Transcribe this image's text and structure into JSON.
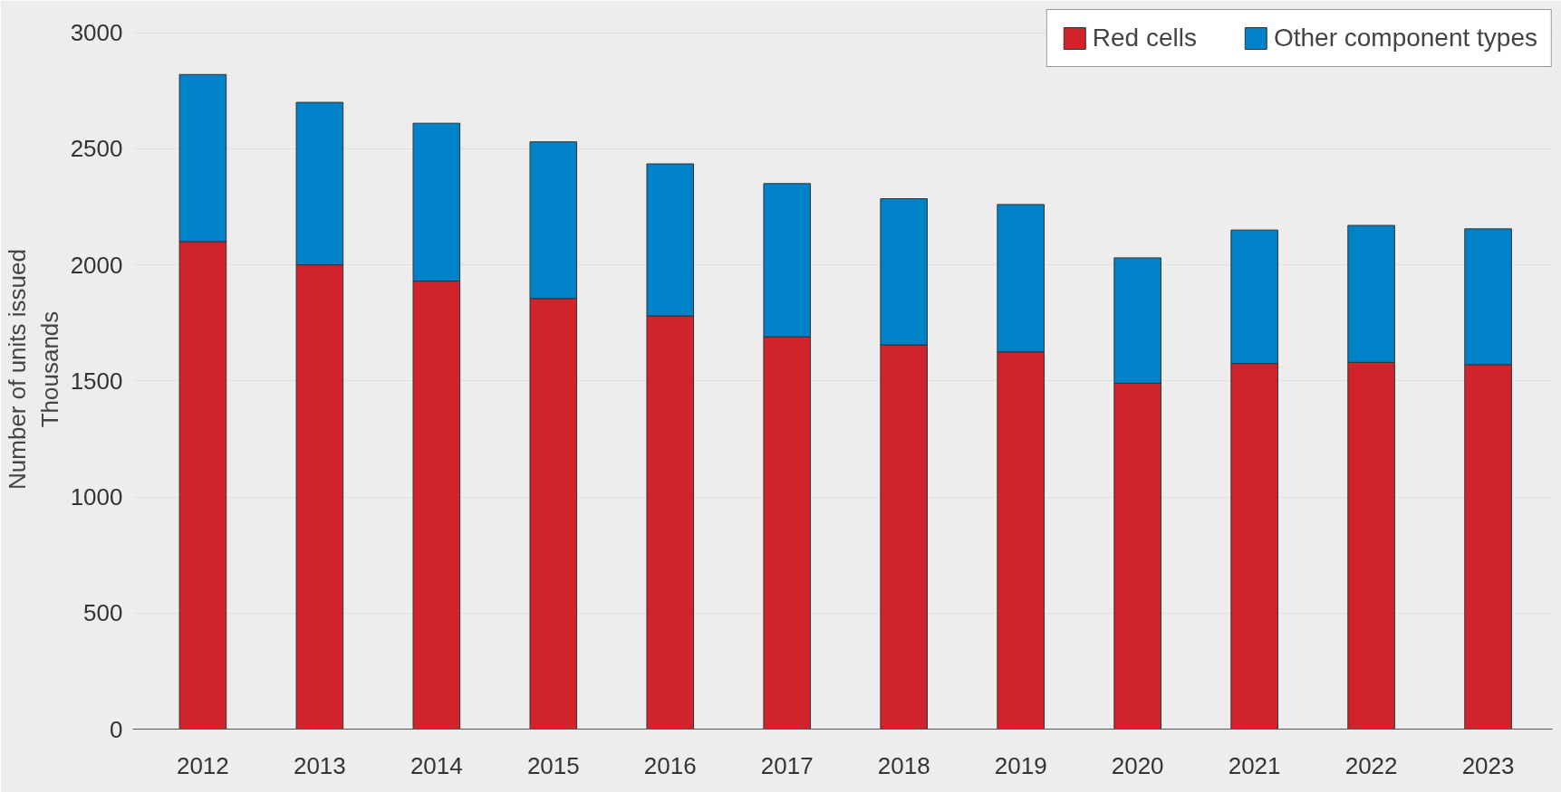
{
  "chart_data": {
    "type": "bar",
    "stacked": true,
    "ylabel": "Number of units issued\nThousands",
    "categories": [
      "2012",
      "2013",
      "2014",
      "2015",
      "2016",
      "2017",
      "2018",
      "2019",
      "2020",
      "2021",
      "2022",
      "2023"
    ],
    "series": [
      {
        "name": "Red cells",
        "color": "#d0232b",
        "values": [
          2100,
          2000,
          1930,
          1855,
          1780,
          1690,
          1655,
          1625,
          1490,
          1575,
          1580,
          1570
        ]
      },
      {
        "name": "Other component types",
        "color": "#0082c8",
        "values": [
          720,
          700,
          680,
          675,
          655,
          660,
          630,
          635,
          540,
          575,
          590,
          585
        ]
      }
    ],
    "ylim": [
      0,
      3100
    ],
    "yticks": [
      0,
      500,
      1000,
      1500,
      2000,
      2500,
      3000
    ],
    "grid": "y",
    "legend": "top right"
  }
}
